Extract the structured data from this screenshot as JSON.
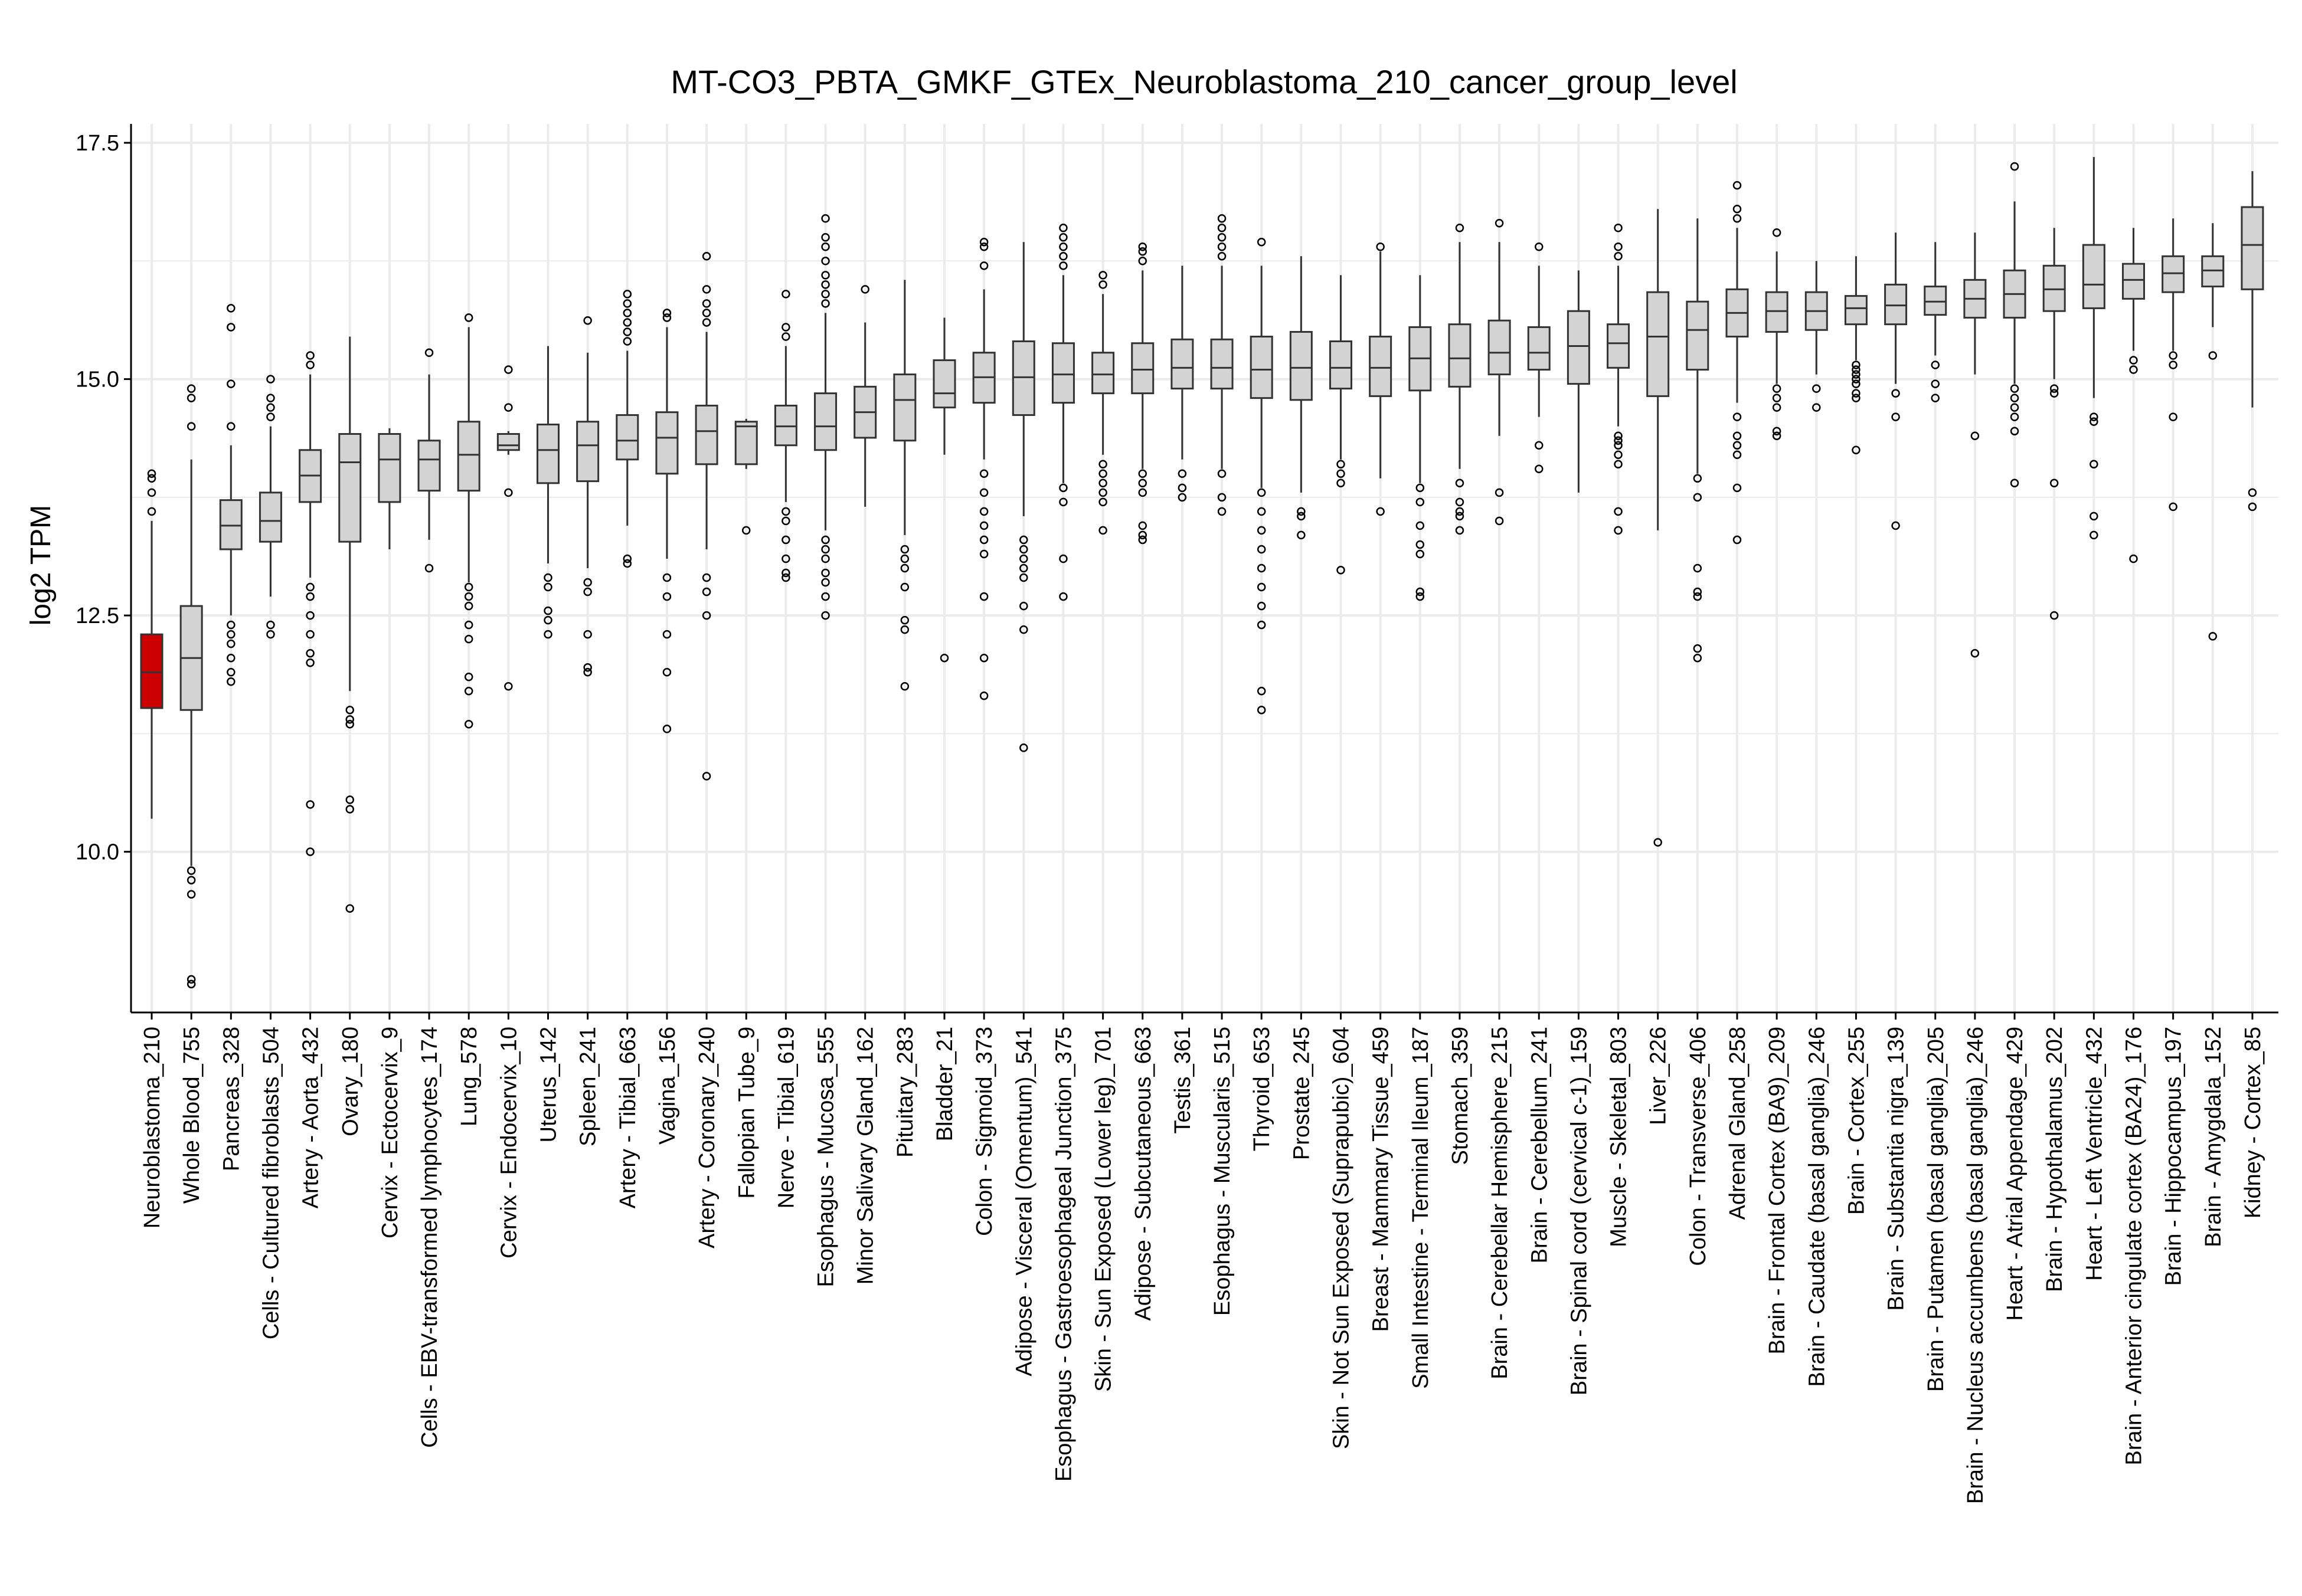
{
  "chart_data": {
    "type": "boxplot",
    "title": "MT-CO3_PBTA_GMKF_GTEx_Neuroblastoma_210_cancer_group_level",
    "xlabel": "",
    "ylabel": "log2 TPM",
    "ylim": [
      8.3,
      17.7
    ],
    "yticks": [
      10.0,
      12.5,
      15.0,
      17.5
    ],
    "ytick_labels": [
      "10.0",
      "12.5",
      "15.0",
      "17.5"
    ],
    "grid": true,
    "legend": "none",
    "colors": {
      "highlight": "#cc0000",
      "box": "#d3d3d3",
      "stroke": "#333333",
      "grid": "#ebebeb"
    },
    "categories": [
      {
        "label": "Neuroblastoma_210",
        "q1": 11.52,
        "median": 11.9,
        "q3": 12.3,
        "whisker_low": 10.35,
        "whisker_high": 13.5,
        "outliers": [
          13.6,
          13.8,
          13.95,
          14.0
        ],
        "highlight": true
      },
      {
        "label": "Whole Blood_755",
        "q1": 11.5,
        "median": 12.05,
        "q3": 12.6,
        "whisker_low": 9.85,
        "whisker_high": 14.15,
        "outliers": [
          14.5,
          14.8,
          14.9,
          9.8,
          9.7,
          9.55,
          8.65,
          8.6
        ]
      },
      {
        "label": "Pancreas_328",
        "q1": 13.2,
        "median": 13.45,
        "q3": 13.72,
        "whisker_low": 12.5,
        "whisker_high": 14.3,
        "outliers": [
          14.5,
          14.95,
          15.55,
          15.75,
          12.4,
          12.3,
          12.2,
          12.05,
          11.9,
          11.8
        ]
      },
      {
        "label": "Cells - Cultured fibroblasts_504",
        "q1": 13.28,
        "median": 13.5,
        "q3": 13.8,
        "whisker_low": 12.7,
        "whisker_high": 14.5,
        "outliers": [
          14.6,
          14.7,
          14.8,
          15.0,
          12.4,
          12.3
        ]
      },
      {
        "label": "Artery - Aorta_432",
        "q1": 13.7,
        "median": 13.98,
        "q3": 14.25,
        "whisker_low": 12.9,
        "whisker_high": 15.05,
        "outliers": [
          15.15,
          15.25,
          12.8,
          12.7,
          12.5,
          12.3,
          12.1,
          12.0,
          10.5,
          10.0
        ]
      },
      {
        "label": "Ovary_180",
        "q1": 13.28,
        "median": 14.12,
        "q3": 14.42,
        "whisker_low": 11.7,
        "whisker_high": 15.45,
        "outliers": [
          11.5,
          11.4,
          11.35,
          10.55,
          10.45,
          9.4
        ]
      },
      {
        "label": "Cervix - Ectocervix_9",
        "q1": 13.7,
        "median": 14.15,
        "q3": 14.42,
        "whisker_low": 13.2,
        "whisker_high": 14.48,
        "outliers": []
      },
      {
        "label": "Cells - EBV-transformed lymphocytes_174",
        "q1": 13.82,
        "median": 14.15,
        "q3": 14.35,
        "whisker_low": 13.3,
        "whisker_high": 15.05,
        "outliers": [
          15.28,
          13.0
        ]
      },
      {
        "label": "Lung_578",
        "q1": 13.82,
        "median": 14.2,
        "q3": 14.55,
        "whisker_low": 12.85,
        "whisker_high": 15.55,
        "outliers": [
          15.65,
          12.8,
          12.7,
          12.6,
          12.4,
          12.25,
          11.85,
          11.7,
          11.35
        ]
      },
      {
        "label": "Cervix - Endocervix_10",
        "q1": 14.25,
        "median": 14.3,
        "q3": 14.42,
        "whisker_low": 14.2,
        "whisker_high": 14.45,
        "outliers": [
          15.1,
          14.7,
          13.8,
          11.75
        ]
      },
      {
        "label": "Uterus_142",
        "q1": 13.9,
        "median": 14.25,
        "q3": 14.52,
        "whisker_low": 13.05,
        "whisker_high": 15.35,
        "outliers": [
          12.9,
          12.8,
          12.55,
          12.45,
          12.3
        ]
      },
      {
        "label": "Spleen_241",
        "q1": 13.92,
        "median": 14.3,
        "q3": 14.55,
        "whisker_low": 13.0,
        "whisker_high": 15.28,
        "outliers": [
          15.62,
          12.85,
          12.75,
          12.3,
          11.95,
          11.9
        ]
      },
      {
        "label": "Artery - Tibial_663",
        "q1": 14.15,
        "median": 14.35,
        "q3": 14.62,
        "whisker_low": 13.45,
        "whisker_high": 15.3,
        "outliers": [
          15.4,
          15.5,
          15.6,
          15.7,
          15.8,
          15.9,
          13.1,
          13.05
        ]
      },
      {
        "label": "Vagina_156",
        "q1": 14.0,
        "median": 14.38,
        "q3": 14.65,
        "whisker_low": 13.1,
        "whisker_high": 15.55,
        "outliers": [
          15.65,
          15.7,
          12.9,
          12.7,
          12.3,
          11.9,
          11.3
        ]
      },
      {
        "label": "Artery - Coronary_240",
        "q1": 14.1,
        "median": 14.45,
        "q3": 14.72,
        "whisker_low": 13.2,
        "whisker_high": 15.5,
        "outliers": [
          15.6,
          15.7,
          15.8,
          15.95,
          16.3,
          12.9,
          12.75,
          12.5,
          10.8
        ]
      },
      {
        "label": "Fallopian Tube_9",
        "q1": 14.1,
        "median": 14.5,
        "q3": 14.55,
        "whisker_low": 14.05,
        "whisker_high": 14.58,
        "outliers": [
          13.4
        ]
      },
      {
        "label": "Nerve - Tibial_619",
        "q1": 14.3,
        "median": 14.5,
        "q3": 14.72,
        "whisker_low": 13.7,
        "whisker_high": 15.35,
        "outliers": [
          15.45,
          15.55,
          15.9,
          13.6,
          13.5,
          13.3,
          13.1,
          12.95,
          12.9
        ]
      },
      {
        "label": "Esophagus - Mucosa_555",
        "q1": 14.25,
        "median": 14.5,
        "q3": 14.85,
        "whisker_low": 13.4,
        "whisker_high": 15.7,
        "outliers": [
          15.8,
          15.9,
          16.0,
          16.1,
          16.25,
          16.4,
          16.5,
          16.7,
          13.3,
          13.2,
          13.1,
          12.95,
          12.85,
          12.7,
          12.5
        ]
      },
      {
        "label": "Minor Salivary Gland_162",
        "q1": 14.38,
        "median": 14.65,
        "q3": 14.92,
        "whisker_low": 13.65,
        "whisker_high": 15.6,
        "outliers": [
          15.95
        ]
      },
      {
        "label": "Pituitary_283",
        "q1": 14.35,
        "median": 14.78,
        "q3": 15.05,
        "whisker_low": 13.35,
        "whisker_high": 16.05,
        "outliers": [
          13.2,
          13.1,
          13.0,
          12.8,
          12.45,
          12.35,
          11.75
        ]
      },
      {
        "label": "Bladder_21",
        "q1": 14.7,
        "median": 14.85,
        "q3": 15.2,
        "whisker_low": 14.2,
        "whisker_high": 15.65,
        "outliers": [
          12.05
        ]
      },
      {
        "label": "Colon - Sigmoid_373",
        "q1": 14.75,
        "median": 15.02,
        "q3": 15.28,
        "whisker_low": 14.15,
        "whisker_high": 15.95,
        "outliers": [
          16.2,
          16.4,
          16.45,
          14.0,
          13.8,
          13.6,
          13.45,
          13.3,
          13.15,
          12.7,
          12.05,
          11.65
        ]
      },
      {
        "label": "Adipose - Visceral (Omentum)_541",
        "q1": 14.62,
        "median": 15.02,
        "q3": 15.4,
        "whisker_low": 13.55,
        "whisker_high": 16.45,
        "outliers": [
          13.3,
          13.2,
          13.1,
          13.0,
          12.9,
          12.6,
          12.35,
          11.1
        ]
      },
      {
        "label": "Esophagus - Gastroesophageal Junction_375",
        "q1": 14.75,
        "median": 15.05,
        "q3": 15.38,
        "whisker_low": 13.9,
        "whisker_high": 16.1,
        "outliers": [
          16.2,
          16.3,
          16.4,
          16.5,
          16.6,
          13.85,
          13.7,
          13.1,
          12.7
        ]
      },
      {
        "label": "Skin - Sun Exposed (Lower leg)_701",
        "q1": 14.85,
        "median": 15.05,
        "q3": 15.28,
        "whisker_low": 14.2,
        "whisker_high": 15.9,
        "outliers": [
          16.0,
          16.1,
          14.1,
          14.0,
          13.9,
          13.8,
          13.7,
          13.4
        ]
      },
      {
        "label": "Adipose - Subcutaneous_663",
        "q1": 14.85,
        "median": 15.1,
        "q3": 15.38,
        "whisker_low": 14.05,
        "whisker_high": 16.15,
        "outliers": [
          16.25,
          16.35,
          16.4,
          14.0,
          13.9,
          13.8,
          13.45,
          13.35,
          13.3
        ]
      },
      {
        "label": "Testis_361",
        "q1": 14.9,
        "median": 15.12,
        "q3": 15.42,
        "whisker_low": 14.15,
        "whisker_high": 16.2,
        "outliers": [
          14.0,
          13.85,
          13.75
        ]
      },
      {
        "label": "Esophagus - Muscularis_515",
        "q1": 14.9,
        "median": 15.12,
        "q3": 15.42,
        "whisker_low": 14.05,
        "whisker_high": 16.2,
        "outliers": [
          16.3,
          16.4,
          16.5,
          16.6,
          16.7,
          14.0,
          13.75,
          13.6
        ]
      },
      {
        "label": "Thyroid_653",
        "q1": 14.8,
        "median": 15.1,
        "q3": 15.45,
        "whisker_low": 13.85,
        "whisker_high": 16.2,
        "outliers": [
          16.45,
          13.8,
          13.6,
          13.4,
          13.2,
          13.0,
          12.8,
          12.6,
          12.4,
          11.7,
          11.5
        ]
      },
      {
        "label": "Prostate_245",
        "q1": 14.78,
        "median": 15.12,
        "q3": 15.5,
        "whisker_low": 13.8,
        "whisker_high": 16.3,
        "outliers": [
          13.6,
          13.55,
          13.35
        ]
      },
      {
        "label": "Skin - Not Sun Exposed (Suprapubic)_604",
        "q1": 14.9,
        "median": 15.12,
        "q3": 15.4,
        "whisker_low": 14.15,
        "whisker_high": 16.1,
        "outliers": [
          14.1,
          14.0,
          13.9,
          12.98
        ]
      },
      {
        "label": "Breast - Mammary Tissue_459",
        "q1": 14.82,
        "median": 15.12,
        "q3": 15.45,
        "whisker_low": 13.95,
        "whisker_high": 16.35,
        "outliers": [
          16.4,
          13.6
        ]
      },
      {
        "label": "Small Intestine - Terminal Ileum_187",
        "q1": 14.88,
        "median": 15.22,
        "q3": 15.55,
        "whisker_low": 13.9,
        "whisker_high": 16.1,
        "outliers": [
          13.85,
          13.7,
          13.45,
          13.25,
          13.15,
          12.75,
          12.7
        ]
      },
      {
        "label": "Stomach_359",
        "q1": 14.92,
        "median": 15.22,
        "q3": 15.58,
        "whisker_low": 14.05,
        "whisker_high": 16.45,
        "outliers": [
          16.6,
          13.9,
          13.7,
          13.6,
          13.55,
          13.4
        ]
      },
      {
        "label": "Brain - Cerebellar Hemisphere_215",
        "q1": 15.05,
        "median": 15.28,
        "q3": 15.62,
        "whisker_low": 14.4,
        "whisker_high": 16.45,
        "outliers": [
          16.65,
          13.8,
          13.5
        ]
      },
      {
        "label": "Brain - Cerebellum_241",
        "q1": 15.1,
        "median": 15.28,
        "q3": 15.55,
        "whisker_low": 14.6,
        "whisker_high": 16.2,
        "outliers": [
          16.4,
          14.3,
          14.05
        ]
      },
      {
        "label": "Brain - Spinal cord (cervical c-1)_159",
        "q1": 14.95,
        "median": 15.35,
        "q3": 15.72,
        "whisker_low": 13.8,
        "whisker_high": 16.15,
        "outliers": []
      },
      {
        "label": "Muscle - Skeletal_803",
        "q1": 15.12,
        "median": 15.38,
        "q3": 15.58,
        "whisker_low": 14.5,
        "whisker_high": 16.2,
        "outliers": [
          16.3,
          16.4,
          16.6,
          14.4,
          14.35,
          14.3,
          14.2,
          14.1,
          13.6,
          13.4
        ]
      },
      {
        "label": "Liver_226",
        "q1": 14.82,
        "median": 15.45,
        "q3": 15.92,
        "whisker_low": 13.4,
        "whisker_high": 16.8,
        "outliers": [
          10.1
        ]
      },
      {
        "label": "Colon - Transverse_406",
        "q1": 15.1,
        "median": 15.52,
        "q3": 15.82,
        "whisker_low": 14.0,
        "whisker_high": 16.7,
        "outliers": [
          13.95,
          13.75,
          13.0,
          12.75,
          12.7,
          12.15,
          12.05
        ]
      },
      {
        "label": "Adrenal Gland_258",
        "q1": 15.45,
        "median": 15.7,
        "q3": 15.95,
        "whisker_low": 14.75,
        "whisker_high": 16.6,
        "outliers": [
          16.7,
          16.8,
          17.05,
          14.6,
          14.4,
          14.3,
          14.2,
          13.85,
          13.3
        ]
      },
      {
        "label": "Brain - Frontal Cortex (BA9)_209",
        "q1": 15.5,
        "median": 15.72,
        "q3": 15.92,
        "whisker_low": 14.95,
        "whisker_high": 16.35,
        "outliers": [
          16.55,
          14.9,
          14.8,
          14.7,
          14.45,
          14.4
        ]
      },
      {
        "label": "Brain - Caudate (basal ganglia)_246",
        "q1": 15.52,
        "median": 15.72,
        "q3": 15.92,
        "whisker_low": 15.05,
        "whisker_high": 16.25,
        "outliers": [
          14.9,
          14.7
        ]
      },
      {
        "label": "Brain - Cortex_255",
        "q1": 15.58,
        "median": 15.75,
        "q3": 15.88,
        "whisker_low": 15.2,
        "whisker_high": 16.3,
        "outliers": [
          15.15,
          15.1,
          15.05,
          15.0,
          14.95,
          14.85,
          14.8,
          14.25
        ]
      },
      {
        "label": "Brain - Substantia nigra_139",
        "q1": 15.58,
        "median": 15.78,
        "q3": 16.0,
        "whisker_low": 14.95,
        "whisker_high": 16.55,
        "outliers": [
          14.85,
          14.6,
          13.45
        ]
      },
      {
        "label": "Brain - Putamen (basal ganglia)_205",
        "q1": 15.68,
        "median": 15.82,
        "q3": 15.98,
        "whisker_low": 15.25,
        "whisker_high": 16.45,
        "outliers": [
          15.15,
          14.95,
          14.8
        ]
      },
      {
        "label": "Brain - Nucleus accumbens (basal ganglia)_246",
        "q1": 15.65,
        "median": 15.85,
        "q3": 16.05,
        "whisker_low": 15.05,
        "whisker_high": 16.55,
        "outliers": [
          14.4,
          12.1
        ]
      },
      {
        "label": "Heart - Atrial Appendage_429",
        "q1": 15.65,
        "median": 15.9,
        "q3": 16.15,
        "whisker_low": 14.95,
        "whisker_high": 16.88,
        "outliers": [
          17.25,
          14.9,
          14.8,
          14.7,
          14.6,
          14.45,
          13.9
        ]
      },
      {
        "label": "Brain - Hypothalamus_202",
        "q1": 15.72,
        "median": 15.95,
        "q3": 16.2,
        "whisker_low": 15.0,
        "whisker_high": 16.6,
        "outliers": [
          14.9,
          14.85,
          13.9,
          12.5
        ]
      },
      {
        "label": "Heart - Left Ventricle_432",
        "q1": 15.75,
        "median": 16.0,
        "q3": 16.42,
        "whisker_low": 14.8,
        "whisker_high": 17.35,
        "outliers": [
          14.6,
          14.55,
          14.1,
          13.55,
          13.35
        ]
      },
      {
        "label": "Brain - Anterior cingulate cortex (BA24)_176",
        "q1": 15.85,
        "median": 16.05,
        "q3": 16.22,
        "whisker_low": 15.3,
        "whisker_high": 16.6,
        "outliers": [
          15.2,
          15.1,
          13.1
        ]
      },
      {
        "label": "Brain - Hippocampus_197",
        "q1": 15.92,
        "median": 16.12,
        "q3": 16.3,
        "whisker_low": 15.3,
        "whisker_high": 16.7,
        "outliers": [
          15.25,
          15.15,
          14.6,
          13.65
        ]
      },
      {
        "label": "Brain - Amygdala_152",
        "q1": 15.98,
        "median": 16.15,
        "q3": 16.3,
        "whisker_low": 15.55,
        "whisker_high": 16.65,
        "outliers": [
          15.25,
          12.28
        ]
      },
      {
        "label": "Kidney - Cortex_85",
        "q1": 15.95,
        "median": 16.42,
        "q3": 16.82,
        "whisker_low": 14.7,
        "whisker_high": 17.2,
        "outliers": [
          13.8,
          13.65
        ]
      }
    ]
  }
}
